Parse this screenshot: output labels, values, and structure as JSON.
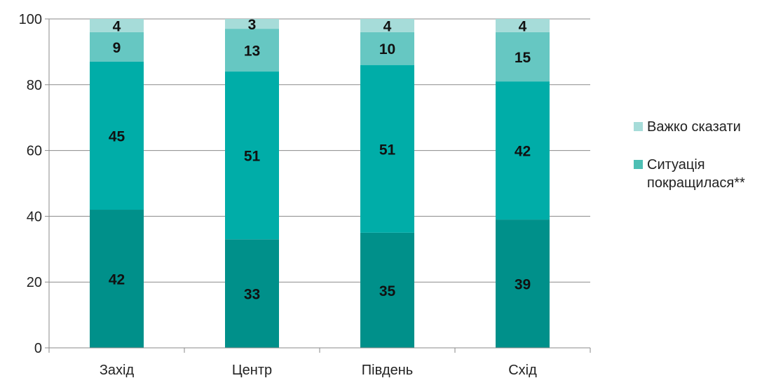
{
  "chart_data": {
    "type": "bar",
    "stacked": true,
    "categories": [
      "Захід",
      "Центр",
      "Південь",
      "Схід"
    ],
    "series": [
      {
        "values": [
          42,
          33,
          35,
          39
        ],
        "color": "#00908A"
      },
      {
        "name": "Ситуація покращилася**",
        "values": [
          45,
          51,
          51,
          42
        ],
        "color": "#00ADA8"
      },
      {
        "values": [
          9,
          13,
          10,
          15
        ],
        "color": "#66C7C2"
      },
      {
        "name": "Важко сказати",
        "values": [
          4,
          3,
          4,
          4
        ],
        "color": "#A6DCD9"
      }
    ],
    "ylim": [
      0,
      100
    ],
    "yticks": [
      0,
      20,
      40,
      60,
      80,
      100
    ],
    "ytick_labels": [
      "0",
      "20",
      "40",
      "60",
      "80",
      "100"
    ],
    "grid": true,
    "legend": {
      "placement": "right",
      "entries": [
        {
          "label": "Важко сказати",
          "color": "#A6DCD9"
        },
        {
          "label": "Ситуація покращилася**",
          "color": "#4DBFB4"
        }
      ]
    }
  }
}
